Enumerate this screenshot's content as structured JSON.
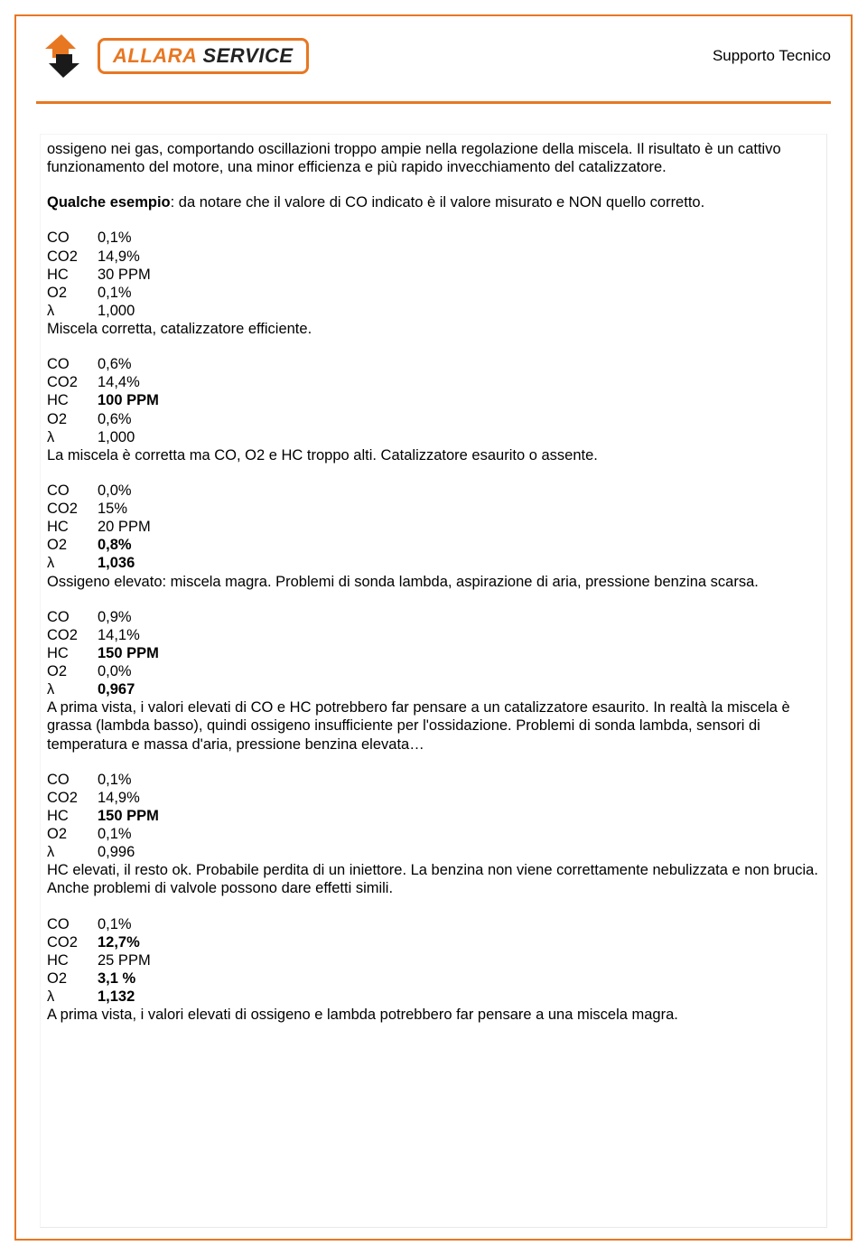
{
  "header": {
    "brand": "ALLARA",
    "service": "SERVICE",
    "subtitle": "Supporto Tecnico"
  },
  "intro_paragraph": "ossigeno nei gas, comportando oscillazioni troppo ampie nella regolazione della miscela. Il risultato è un cattivo funzionamento del motore, una minor efficienza e più rapido invecchiamento del catalizzatore.",
  "notice_label": "Qualche esempio",
  "notice_rest": ": da notare che il valore di CO indicato è il valore misurato e NON quello corretto.",
  "examples": [
    {
      "rows": [
        {
          "label": "CO",
          "value": "0,1%",
          "bold": false
        },
        {
          "label": "CO2",
          "value": "14,9%",
          "bold": false
        },
        {
          "label": "HC",
          "value": "30 PPM",
          "bold": false
        },
        {
          "label": "O2",
          "value": "0,1%",
          "bold": false
        },
        {
          "label": "λ",
          "value": "1,000",
          "bold": false
        }
      ],
      "note": "Miscela corretta, catalizzatore efficiente."
    },
    {
      "rows": [
        {
          "label": "CO",
          "value": "0,6%",
          "bold": false
        },
        {
          "label": "CO2",
          "value": "14,4%",
          "bold": false
        },
        {
          "label": "HC",
          "value": "100 PPM",
          "bold": true
        },
        {
          "label": "O2",
          "value": "0,6%",
          "bold": false
        },
        {
          "label": "λ",
          "value": "1,000",
          "bold": false
        }
      ],
      "note": "La miscela è corretta ma CO, O2 e HC troppo alti. Catalizzatore esaurito o assente."
    },
    {
      "rows": [
        {
          "label": "CO",
          "value": "0,0%",
          "bold": false
        },
        {
          "label": "CO2",
          "value": "15%",
          "bold": false
        },
        {
          "label": "HC",
          "value": "20 PPM",
          "bold": false
        },
        {
          "label": "O2",
          "value": "0,8%",
          "bold": true
        },
        {
          "label": "λ",
          "value": "1,036",
          "bold": true
        }
      ],
      "note": "Ossigeno elevato: miscela magra. Problemi di sonda lambda, aspirazione di aria, pressione benzina scarsa."
    },
    {
      "rows": [
        {
          "label": "CO",
          "value": "0,9%",
          "bold": false
        },
        {
          "label": "CO2",
          "value": "14,1%",
          "bold": false
        },
        {
          "label": "HC",
          "value": "150 PPM",
          "bold": true
        },
        {
          "label": "O2",
          "value": "0,0%",
          "bold": false
        },
        {
          "label": "λ",
          "value": "0,967",
          "bold": true
        }
      ],
      "note": "A prima vista, i valori elevati di CO e HC potrebbero far pensare a un catalizzatore esaurito. In realtà la miscela è grassa (lambda basso), quindi ossigeno insufficiente per l'ossidazione. Problemi di sonda lambda, sensori di temperatura e massa d'aria, pressione benzina elevata…"
    },
    {
      "rows": [
        {
          "label": "CO",
          "value": "0,1%",
          "bold": false
        },
        {
          "label": "CO2",
          "value": "14,9%",
          "bold": false
        },
        {
          "label": "HC",
          "value": "150 PPM",
          "bold": true
        },
        {
          "label": "O2",
          "value": "0,1%",
          "bold": false
        },
        {
          "label": "λ",
          "value": "0,996",
          "bold": false
        }
      ],
      "note": "HC elevati, il resto ok. Probabile perdita di un iniettore. La benzina non viene correttamente nebulizzata e non brucia. Anche problemi di valvole possono dare effetti simili."
    },
    {
      "rows": [
        {
          "label": "CO",
          "value": "0,1%",
          "bold": false
        },
        {
          "label": "CO2",
          "value": "12,7%",
          "bold": true
        },
        {
          "label": "HC",
          "value": "25 PPM",
          "bold": false
        },
        {
          "label": "O2",
          "value": "3,1 %",
          "bold": true
        },
        {
          "label": "λ",
          "value": "1,132",
          "bold": true
        }
      ],
      "note": "A prima vista, i valori elevati di ossigeno e lambda potrebbero far pensare a una miscela magra."
    }
  ],
  "colors": {
    "accent": "#e87722",
    "text": "#000000",
    "background": "#ffffff"
  }
}
